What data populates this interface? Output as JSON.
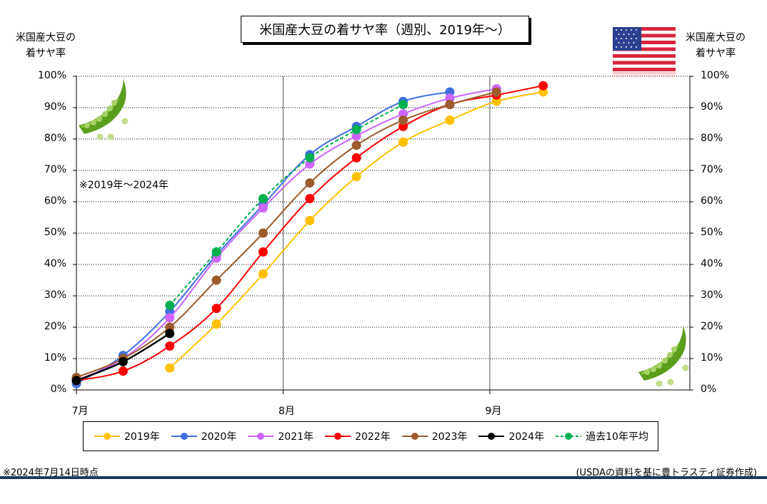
{
  "title": "米国産大豆の着サヤ率（週別、2019年～）",
  "left_axis_caption": [
    "米国産大豆の",
    "着サヤ率"
  ],
  "right_axis_caption": [
    "米国産大豆の",
    "着サヤ率"
  ],
  "chart_note": "※2019年～2024年",
  "footer": {
    "left": "※2024年7月14日時点",
    "right": "(USDAの資料を基に豊トラスティ証券作成)"
  },
  "icons": [
    "usa-flag-icon",
    "pea-pod-icon"
  ],
  "chart_data": {
    "type": "line",
    "x_axis": {
      "labels": [
        "7月",
        "8月",
        "9月"
      ],
      "range": [
        "7/1",
        "9/30"
      ],
      "unit": "day-of-season"
    },
    "y_axis": {
      "range": [
        0,
        100
      ],
      "unit": "%",
      "ticks": [
        0,
        10,
        20,
        30,
        40,
        50,
        60,
        70,
        80,
        90,
        100
      ],
      "tick_labels": [
        "0%",
        "10%",
        "20%",
        "30%",
        "40%",
        "50%",
        "60%",
        "70%",
        "80%",
        "90%",
        "100%"
      ]
    },
    "grid": {
      "horizontal": "dotted",
      "vertical_month_lines": true
    },
    "legend": "bottom",
    "series": [
      {
        "name": "2019年",
        "color": "#ffc000",
        "dash": false,
        "points": [
          [
            "7/15",
            7
          ],
          [
            "7/22",
            21
          ],
          [
            "7/29",
            37
          ],
          [
            "8/5",
            54
          ],
          [
            "8/12",
            68
          ],
          [
            "8/19",
            79
          ],
          [
            "8/26",
            86
          ],
          [
            "9/2",
            92
          ],
          [
            "9/9",
            95
          ]
        ]
      },
      {
        "name": "2020年",
        "color": "#3f6fe0",
        "dash": false,
        "points": [
          [
            "7/1",
            2
          ],
          [
            "7/8",
            11
          ],
          [
            "7/15",
            25
          ],
          [
            "7/22",
            43
          ],
          [
            "7/29",
            59
          ],
          [
            "8/5",
            75
          ],
          [
            "8/12",
            84
          ],
          [
            "8/19",
            92
          ],
          [
            "8/26",
            95
          ]
        ]
      },
      {
        "name": "2021年",
        "color": "#cc66ff",
        "dash": false,
        "points": [
          [
            "7/1",
            3
          ],
          [
            "7/8",
            10
          ],
          [
            "7/15",
            23
          ],
          [
            "7/22",
            42
          ],
          [
            "7/29",
            58
          ],
          [
            "8/5",
            72
          ],
          [
            "8/12",
            81
          ],
          [
            "8/19",
            88
          ],
          [
            "8/26",
            93
          ],
          [
            "9/2",
            96
          ]
        ]
      },
      {
        "name": "2022年",
        "color": "#ff0000",
        "dash": false,
        "points": [
          [
            "7/1",
            3
          ],
          [
            "7/8",
            6
          ],
          [
            "7/15",
            14
          ],
          [
            "7/22",
            26
          ],
          [
            "7/29",
            44
          ],
          [
            "8/5",
            61
          ],
          [
            "8/12",
            74
          ],
          [
            "8/19",
            84
          ],
          [
            "8/26",
            91
          ],
          [
            "9/2",
            94
          ],
          [
            "9/9",
            97
          ]
        ]
      },
      {
        "name": "2023年",
        "color": "#9c5b2c",
        "dash": false,
        "points": [
          [
            "7/1",
            4
          ],
          [
            "7/8",
            10
          ],
          [
            "7/15",
            20
          ],
          [
            "7/22",
            35
          ],
          [
            "7/29",
            50
          ],
          [
            "8/5",
            66
          ],
          [
            "8/12",
            78
          ],
          [
            "8/19",
            86
          ],
          [
            "8/26",
            91
          ],
          [
            "9/2",
            95
          ]
        ]
      },
      {
        "name": "2024年",
        "color": "#000000",
        "dash": false,
        "points": [
          [
            "7/1",
            3
          ],
          [
            "7/8",
            9
          ],
          [
            "7/15",
            18
          ]
        ]
      },
      {
        "name": "過去10年平均",
        "color": "#00b050",
        "dash": true,
        "points": [
          [
            "7/15",
            27
          ],
          [
            "7/22",
            44
          ],
          [
            "7/29",
            61
          ],
          [
            "8/5",
            74
          ],
          [
            "8/12",
            83
          ],
          [
            "8/19",
            91
          ]
        ]
      }
    ]
  }
}
